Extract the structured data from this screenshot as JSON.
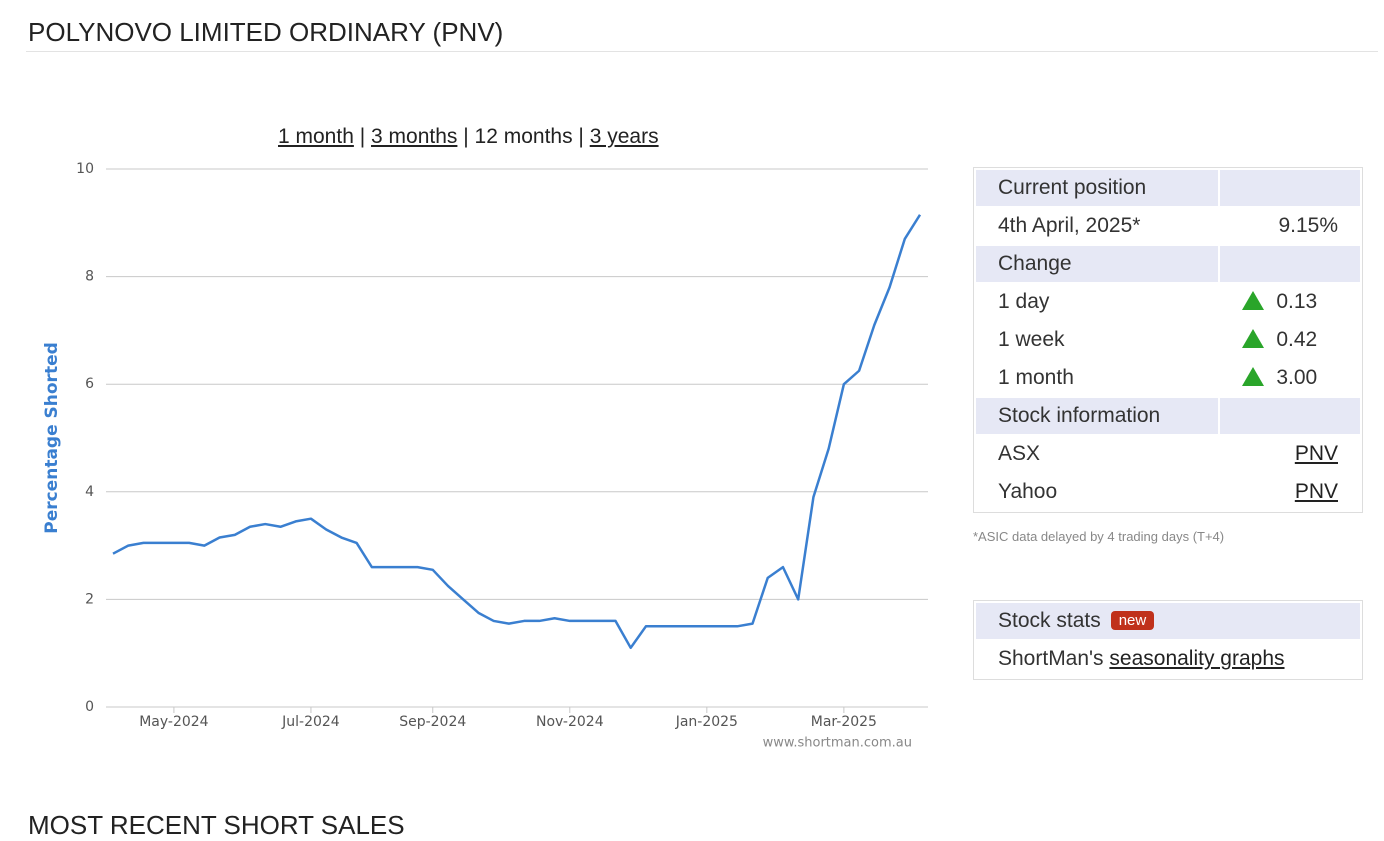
{
  "header": {
    "title": "POLYNOVO LIMITED ORDINARY (PNV)"
  },
  "range_links": [
    "1 month",
    "3 months",
    "12 months",
    "3 years"
  ],
  "chart_data": {
    "type": "line",
    "y_label": "Percentage Shorted",
    "credit": "www.shortman.com.au",
    "categories": [
      null,
      null,
      null,
      null,
      "May-2024",
      null,
      null,
      null,
      null,
      null,
      null,
      null,
      null,
      "Jul-2024",
      null,
      null,
      null,
      null,
      null,
      null,
      null,
      "Sep-2024",
      null,
      null,
      null,
      null,
      null,
      null,
      null,
      null,
      "Nov-2024",
      null,
      null,
      null,
      null,
      null,
      null,
      null,
      null,
      "Jan-2025",
      null,
      null,
      null,
      null,
      null,
      null,
      null,
      null,
      "Mar-2025",
      null,
      null,
      null,
      null,
      null
    ],
    "series": [
      {
        "color": "#3a7fd0",
        "values": [
          2.85,
          3.0,
          3.05,
          3.05,
          3.05,
          3.05,
          3.0,
          3.15,
          3.2,
          3.35,
          3.4,
          3.35,
          3.45,
          3.5,
          3.3,
          3.15,
          3.05,
          2.6,
          2.6,
          2.6,
          2.6,
          2.55,
          2.25,
          2.0,
          1.75,
          1.6,
          1.55,
          1.6,
          1.6,
          1.65,
          1.6,
          1.6,
          1.6,
          1.6,
          1.1,
          1.5,
          1.5,
          1.5,
          1.5,
          1.5,
          1.5,
          1.5,
          1.55,
          2.4,
          2.6,
          2.0,
          3.9,
          4.8,
          6.0,
          6.25,
          7.1,
          7.8,
          8.7,
          9.15
        ]
      }
    ],
    "ylim": [
      0,
      10
    ],
    "yticks": [
      0,
      2,
      4,
      6,
      8,
      10
    ],
    "grid": true
  },
  "position_table": {
    "sections": [
      {
        "heading": "Current position",
        "rows": [
          [
            "4th April, 2025*",
            "9.15%"
          ]
        ]
      },
      {
        "heading": "Change",
        "rows": [
          [
            "1 day",
            "0.13"
          ],
          [
            "1 week",
            "0.42"
          ],
          [
            "1 month",
            "3.00"
          ]
        ]
      },
      {
        "heading": "Stock information",
        "rows": [
          [
            "ASX",
            "PNV"
          ],
          [
            "Yahoo",
            "PNV"
          ]
        ]
      }
    ]
  },
  "footnote": "*ASIC data delayed by 4 trading days (T+4)",
  "stats": {
    "heading": "Stock stats",
    "badge": "new",
    "text": "ShortMan's",
    "link": "seasonality graphs"
  },
  "section_title": "MOST RECENT SHORT SALES"
}
